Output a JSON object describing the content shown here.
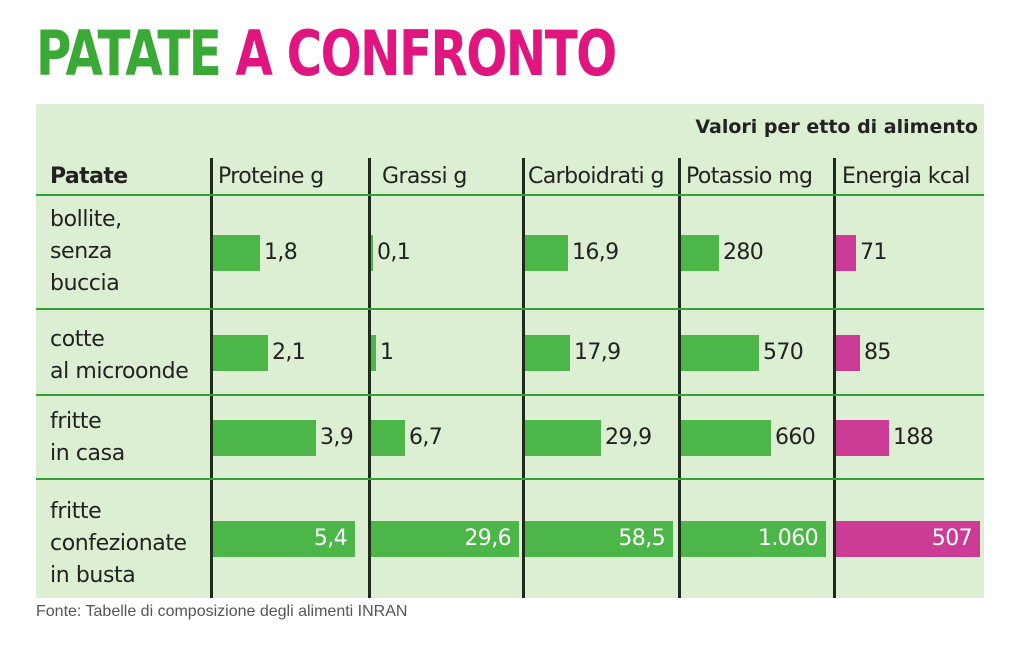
{
  "title": {
    "part1": "PATATE",
    "part2": "A CONFRONTO"
  },
  "colors": {
    "green": "#3aa935",
    "magenta": "#e0157f",
    "panel_bg": "#dcefd2",
    "rule": "#2fa137"
  },
  "chart_data": {
    "type": "table",
    "subtitle": "Valori per etto di alimento",
    "row_header": "Patate",
    "columns": [
      "Proteine g",
      "Grassi g",
      "Carboidrati g",
      "Potassio mg",
      "Energia kcal"
    ],
    "rows": [
      {
        "label": [
          "bollite,",
          "senza",
          "buccia"
        ],
        "values": [
          1.8,
          0.1,
          16.9,
          280,
          71
        ],
        "labels": [
          "1,8",
          "0,1",
          "16,9",
          "280",
          "71"
        ]
      },
      {
        "label": [
          "cotte",
          "al microonde"
        ],
        "values": [
          2.1,
          1,
          17.9,
          570,
          85
        ],
        "labels": [
          "2,1",
          "1",
          "17,9",
          "570",
          "85"
        ]
      },
      {
        "label": [
          "fritte",
          "in casa"
        ],
        "values": [
          3.9,
          6.7,
          29.9,
          660,
          188
        ],
        "labels": [
          "3,9",
          "6,7",
          "29,9",
          "660",
          "188"
        ]
      },
      {
        "label": [
          "fritte",
          "confezionate",
          "in busta"
        ],
        "values": [
          5.4,
          29.6,
          58.5,
          1060,
          507
        ],
        "labels": [
          "5,4",
          "29,6",
          "58,5",
          "1.060",
          "507"
        ]
      }
    ],
    "series_colors": [
      "#4cb648",
      "#4cb648",
      "#4cb648",
      "#4cb648",
      "#cc3c96"
    ]
  },
  "source": "Fonte: Tabelle di composizione degli alimenti INRAN"
}
